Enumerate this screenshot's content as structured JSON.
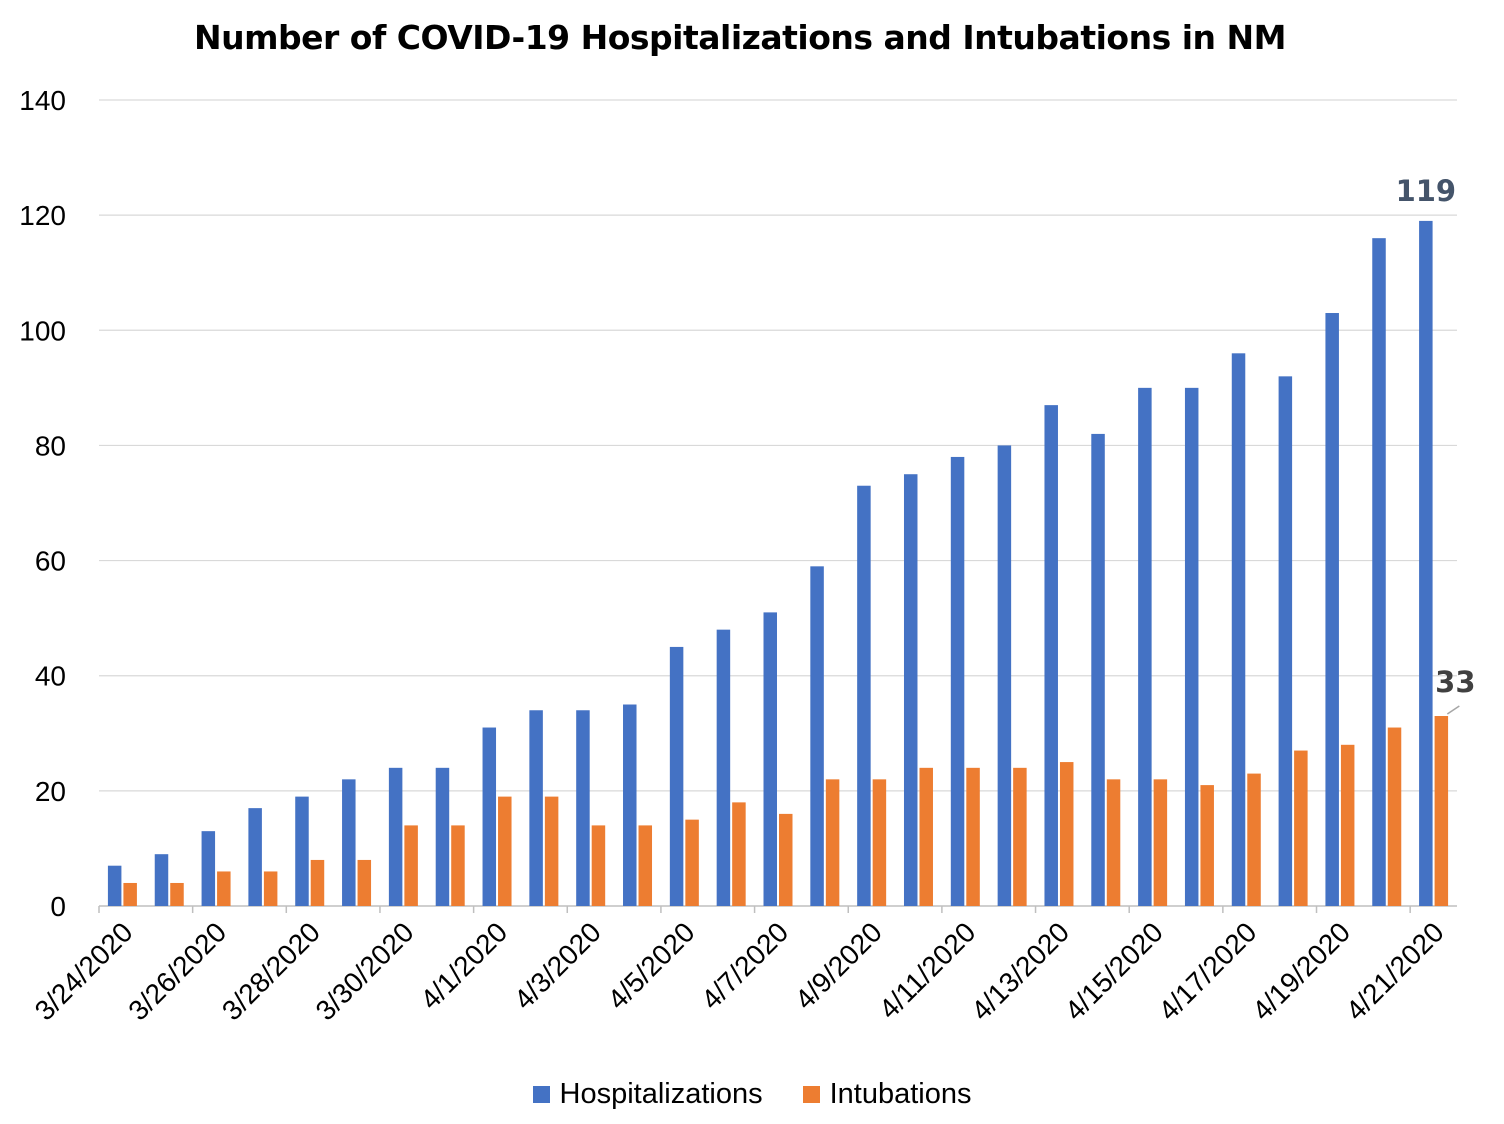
{
  "chart_data": {
    "type": "bar",
    "title": "Number of COVID-19 Hospitalizations and Intubations in NM",
    "xlabel": "",
    "ylabel": "",
    "ylim": [
      0,
      140
    ],
    "yticks": [
      0,
      20,
      40,
      60,
      80,
      100,
      120,
      140
    ],
    "grid": true,
    "legend_position": "bottom",
    "categories": [
      "3/24/2020",
      "3/25/2020",
      "3/26/2020",
      "3/27/2020",
      "3/28/2020",
      "3/29/2020",
      "3/30/2020",
      "3/31/2020",
      "4/1/2020",
      "4/2/2020",
      "4/3/2020",
      "4/4/2020",
      "4/5/2020",
      "4/6/2020",
      "4/7/2020",
      "4/8/2020",
      "4/9/2020",
      "4/10/2020",
      "4/11/2020",
      "4/12/2020",
      "4/13/2020",
      "4/14/2020",
      "4/15/2020",
      "4/16/2020",
      "4/17/2020",
      "4/18/2020",
      "4/19/2020",
      "4/20/2020",
      "4/21/2020"
    ],
    "tick_labels": [
      "3/24/2020",
      "3/26/2020",
      "3/28/2020",
      "3/30/2020",
      "4/1/2020",
      "4/3/2020",
      "4/5/2020",
      "4/7/2020",
      "4/9/2020",
      "4/11/2020",
      "4/13/2020",
      "4/15/2020",
      "4/17/2020",
      "4/19/2020",
      "4/21/2020"
    ],
    "series": [
      {
        "name": "Hospitalizations",
        "color": "#4472C4",
        "values": [
          7,
          9,
          13,
          17,
          19,
          22,
          24,
          24,
          31,
          34,
          34,
          35,
          45,
          48,
          51,
          59,
          73,
          75,
          78,
          80,
          87,
          82,
          90,
          90,
          96,
          92,
          103,
          116,
          119
        ]
      },
      {
        "name": "Intubations",
        "color": "#ED7D31",
        "values": [
          4,
          4,
          6,
          6,
          8,
          8,
          14,
          14,
          19,
          19,
          14,
          14,
          15,
          18,
          16,
          22,
          22,
          24,
          24,
          24,
          25,
          22,
          22,
          21,
          23,
          27,
          28,
          31,
          33
        ]
      }
    ],
    "annotations": [
      {
        "series": "Hospitalizations",
        "category": "4/21/2020",
        "text": "119"
      },
      {
        "series": "Intubations",
        "category": "4/21/2020",
        "text": "33"
      }
    ]
  },
  "legend": {
    "hospitalizations_label": "Hospitalizations",
    "intubations_label": "Intubations"
  }
}
